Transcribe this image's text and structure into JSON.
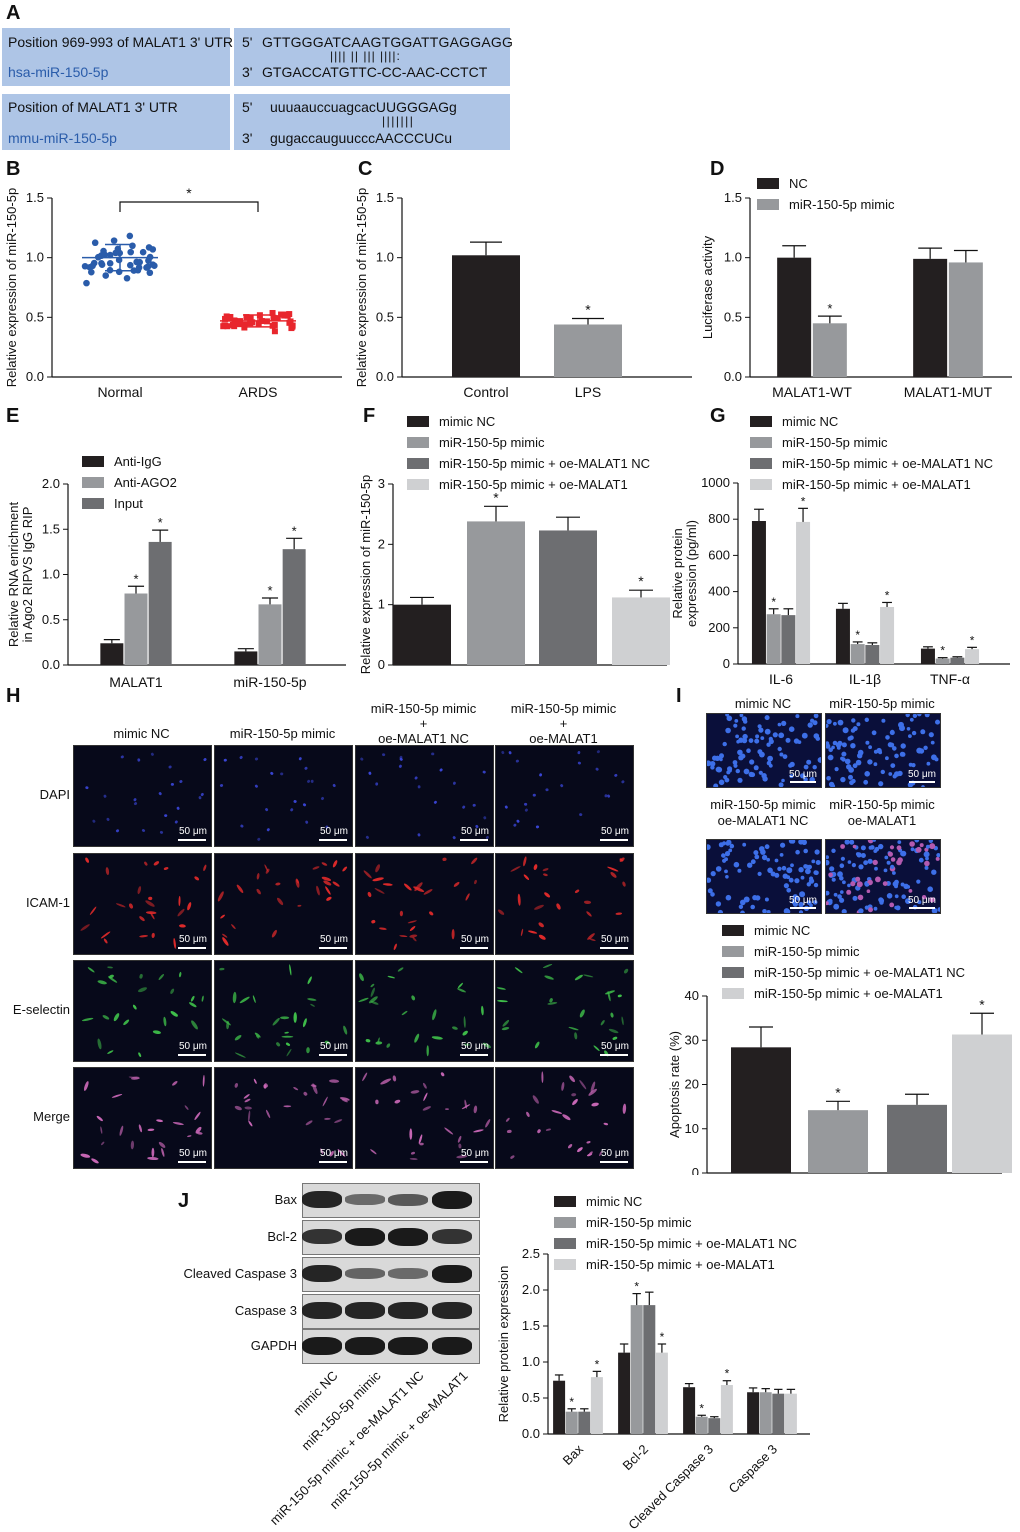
{
  "panels": {
    "A": "A",
    "B": "B",
    "C": "C",
    "D": "D",
    "E": "E",
    "F": "F",
    "G": "G",
    "H": "H",
    "I": "I",
    "J": "J"
  },
  "panelA": {
    "row1": {
      "left_title": "Position 969-993 of MALAT1 3' UTR",
      "left_mirna": "hsa-miR-150-5p",
      "p5": "5'",
      "seq_top": "GTTGGGATCAAGTGGATTGAGGAGG",
      "pairs": "|||| || ||| ||||:",
      "p3": "3'",
      "seq_bottom": "GTGACCATGTTC-CC-AAC-CCTCT"
    },
    "row2": {
      "left_title": "Position of MALAT1 3' UTR",
      "left_mirna": "mmu-miR-150-5p",
      "p5": "5'",
      "seq_top": "uuuaauccuagcacUUGGGAGg",
      "pairs": "|||||||",
      "p3": "3'",
      "seq_bottom": "gugaccauguucccAACCCUCu"
    }
  },
  "colors": {
    "black": "#231f20",
    "grey": "#97999c",
    "darkgrey": "#6d6e71",
    "lightgrey": "#cfd0d2",
    "blue": "#2a5caa",
    "red": "#e8262d"
  },
  "chart_data": [
    {
      "id": "B",
      "type": "scatter",
      "ylabel": "Relative expression of miR-150-5p",
      "categories": [
        "Normal",
        "ARDS"
      ],
      "ylim": [
        0,
        1.5
      ],
      "yticks": [
        "0.0",
        "0.5",
        "1.0",
        "1.5"
      ],
      "means": [
        1.0,
        0.47
      ],
      "sd": [
        0.11,
        0.05
      ],
      "significance": "*"
    },
    {
      "id": "C",
      "type": "bar",
      "ylabel": "Relative expression of miR-150-5p",
      "categories": [
        "Control",
        "LPS"
      ],
      "values": [
        1.02,
        0.44
      ],
      "errors": [
        0.11,
        0.05
      ],
      "stars": [
        "",
        "*"
      ],
      "ylim": [
        0,
        1.5
      ],
      "yticks": [
        "0.0",
        "0.5",
        "1.0",
        "1.5"
      ]
    },
    {
      "id": "D",
      "type": "bar",
      "ylabel": "Luciferase activity",
      "categories": [
        "MALAT1-WT",
        "MALAT1-MUT"
      ],
      "ylim": [
        0,
        1.5
      ],
      "yticks": [
        "0.0",
        "0.5",
        "1.0",
        "1.5"
      ],
      "series": [
        {
          "name": "NC",
          "values": [
            1.0,
            0.99
          ],
          "errors": [
            0.1,
            0.09
          ],
          "stars": [
            "",
            ""
          ]
        },
        {
          "name": "miR-150-5p mimic",
          "values": [
            0.45,
            0.96
          ],
          "errors": [
            0.06,
            0.1
          ],
          "stars": [
            "*",
            ""
          ]
        }
      ]
    },
    {
      "id": "E",
      "type": "bar",
      "ylabel": "Relative RNA enrichment in Ago2 RIPVS IgG RIP",
      "categories": [
        "MALAT1",
        "miR-150-5p"
      ],
      "ylim": [
        0,
        2.0
      ],
      "yticks": [
        "0.0",
        "0.5",
        "1.0",
        "1.5",
        "2.0"
      ],
      "series": [
        {
          "name": "Anti-IgG",
          "values": [
            0.24,
            0.15
          ],
          "errors": [
            0.04,
            0.03
          ],
          "stars": [
            "",
            ""
          ]
        },
        {
          "name": "Anti-AGO2",
          "values": [
            0.79,
            0.67
          ],
          "errors": [
            0.08,
            0.07
          ],
          "stars": [
            "*",
            "*"
          ]
        },
        {
          "name": "Input",
          "values": [
            1.36,
            1.28
          ],
          "errors": [
            0.13,
            0.12
          ],
          "stars": [
            "*",
            "*"
          ]
        }
      ]
    },
    {
      "id": "F",
      "type": "bar",
      "ylabel": "Relative expression of miR-150-5p",
      "categories": [
        "mimic NC",
        "miR-150-5p mimic",
        "miR-150-5p mimic + oe-MALAT1 NC",
        "miR-150-5p mimic + oe-MALAT1"
      ],
      "values": [
        1.0,
        2.38,
        2.23,
        1.12
      ],
      "errors": [
        0.12,
        0.25,
        0.22,
        0.12
      ],
      "stars": [
        "",
        "*",
        "",
        "*"
      ],
      "ylim": [
        0,
        3
      ],
      "yticks": [
        "0",
        "1",
        "2",
        "3"
      ]
    },
    {
      "id": "G",
      "type": "bar",
      "ylabel": "Relative protein expression (pg/ml)",
      "categories": [
        "IL-6",
        "IL-1β",
        "TNF-α"
      ],
      "ylim": [
        0,
        1000
      ],
      "yticks": [
        "0",
        "200",
        "400",
        "600",
        "800",
        "1000"
      ],
      "series": [
        {
          "name": "mimic NC",
          "values": [
            790,
            305,
            85
          ],
          "errors": [
            65,
            30,
            10
          ],
          "stars": [
            "",
            "",
            ""
          ]
        },
        {
          "name": "miR-150-5p mimic",
          "values": [
            275,
            110,
            30
          ],
          "errors": [
            30,
            12,
            5
          ],
          "stars": [
            "*",
            "*",
            "*"
          ]
        },
        {
          "name": "miR-150-5p mimic + oe-MALAT1 NC",
          "values": [
            270,
            105,
            35
          ],
          "errors": [
            35,
            12,
            5
          ],
          "stars": [
            "",
            "",
            ""
          ]
        },
        {
          "name": "miR-150-5p mimic + oe-MALAT1",
          "values": [
            785,
            315,
            82
          ],
          "errors": [
            75,
            25,
            10
          ],
          "stars": [
            "*",
            "*",
            "*"
          ]
        }
      ]
    },
    {
      "id": "I",
      "type": "bar",
      "ylabel": "Apoptosis rate (%)",
      "categories": [
        "mimic NC",
        "miR-150-5p mimic",
        "miR-150-5p mimic + oe-MALAT1 NC",
        "miR-150-5p mimic + oe-MALAT1"
      ],
      "values": [
        28.4,
        14.2,
        15.4,
        31.3
      ],
      "errors": [
        4.6,
        2.0,
        2.4,
        4.8
      ],
      "stars": [
        "",
        "*",
        "",
        "*"
      ],
      "ylim": [
        0,
        40
      ],
      "yticks": [
        "0",
        "10",
        "20",
        "30",
        "40"
      ]
    },
    {
      "id": "J",
      "type": "bar",
      "ylabel": "Relative protein expression",
      "categories": [
        "Bax",
        "Bcl-2",
        "Cleaved Caspase 3",
        "Caspase 3"
      ],
      "ylim": [
        0,
        2.5
      ],
      "yticks": [
        "0.0",
        "0.5",
        "1.0",
        "1.5",
        "2.0",
        "2.5"
      ],
      "series": [
        {
          "name": "mimic NC",
          "values": [
            0.74,
            1.13,
            0.65,
            0.58
          ],
          "errors": [
            0.08,
            0.12,
            0.05,
            0.06
          ],
          "stars": [
            "",
            "",
            "",
            ""
          ]
        },
        {
          "name": "miR-150-5p mimic",
          "values": [
            0.31,
            1.79,
            0.24,
            0.58
          ],
          "errors": [
            0.04,
            0.16,
            0.02,
            0.05
          ],
          "stars": [
            "*",
            "*",
            "*",
            ""
          ]
        },
        {
          "name": "miR-150-5p mimic + oe-MALAT1 NC",
          "values": [
            0.31,
            1.79,
            0.22,
            0.56
          ],
          "errors": [
            0.04,
            0.18,
            0.02,
            0.06
          ],
          "stars": [
            "",
            "",
            "",
            ""
          ]
        },
        {
          "name": "miR-150-5p mimic + oe-MALAT1",
          "values": [
            0.79,
            1.13,
            0.68,
            0.56
          ],
          "errors": [
            0.08,
            0.12,
            0.06,
            0.06
          ],
          "stars": [
            "*",
            "*",
            "*",
            ""
          ]
        }
      ]
    }
  ],
  "panelH": {
    "columns": [
      "mimic NC",
      "miR-150-5p mimic",
      "miR-150-5p mimic\n+\noe-MALAT1 NC",
      "miR-150-5p mimic\n+\noe-MALAT1"
    ],
    "rows": [
      "DAPI",
      "ICAM-1",
      "E-selectin",
      "Merge"
    ],
    "scalebar": "50 μm"
  },
  "panelI": {
    "labels": [
      "mimic NC",
      "miR-150-5p mimic",
      "miR-150-5p mimic\noe-MALAT1 NC",
      "miR-150-5p mimic\noe-MALAT1"
    ],
    "scalebar": "50 μm"
  },
  "panelJ": {
    "blot_rows": [
      "Bax",
      "Bcl-2",
      "Cleaved Caspase 3",
      "Caspase 3",
      "GAPDH"
    ],
    "lane_labels": [
      "mimic NC",
      "miR-150-5p mimic",
      "miR-150-5p mimic + oe-MALAT1 NC",
      "miR-150-5p mimic + oe-MALAT1"
    ],
    "band_intensity": [
      [
        0.9,
        0.35,
        0.5,
        1.0
      ],
      [
        0.8,
        1.0,
        1.0,
        0.8
      ],
      [
        0.9,
        0.4,
        0.35,
        1.0
      ],
      [
        0.9,
        0.9,
        0.9,
        0.9
      ],
      [
        1.0,
        1.0,
        1.0,
        1.0
      ]
    ]
  }
}
